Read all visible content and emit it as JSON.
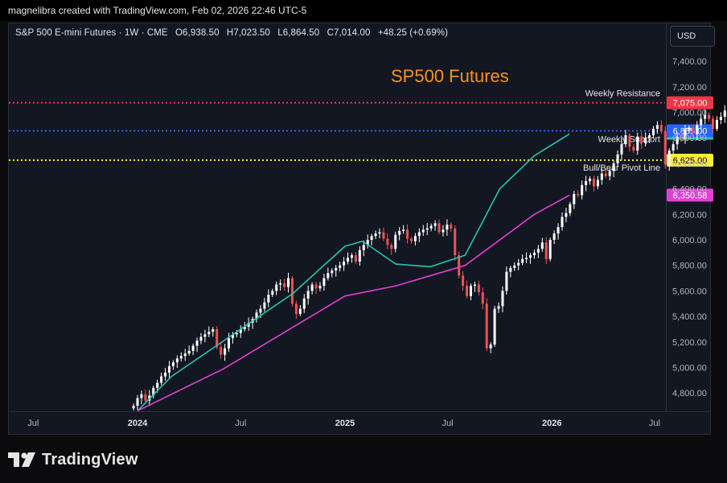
{
  "header": {
    "attribution": "magnelibra created with TradingView.com, Feb 02, 2026 22:46 UTC-5"
  },
  "symbol": {
    "name": "S&P 500 E-mini Futures · 1W · CME",
    "open": "O6,938.50",
    "high": "H7,023.50",
    "low": "L6,864.50",
    "close": "C7,014.00",
    "change": "+48.25 (+0.69%)"
  },
  "currency_button": "USD",
  "footer": {
    "brand": "TradingView"
  },
  "colors": {
    "up": "#ffffff",
    "down": "#ef5350",
    "ema_fast": "#26c6b0",
    "ema_slow": "#e040d6",
    "resistance": "#f23645",
    "support": "#2962ff",
    "pivot": "#ffeb3b",
    "title": "#f79318"
  },
  "chart_data": {
    "type": "candlestick",
    "title": "SP500 Futures",
    "xlabel": "",
    "ylabel": "",
    "y_ticks": [
      "7,400.00",
      "7,200.00",
      "7,000.00",
      "6,800.00",
      "6,600.00",
      "6,400.00",
      "6,200.00",
      "6,000.00",
      "5,800.00",
      "5,600.00",
      "5,400.00",
      "5,200.00",
      "5,000.00",
      "4,800.00"
    ],
    "x_ticks": [
      {
        "label": "Jul",
        "date": "2023-07"
      },
      {
        "label": "2024",
        "date": "2024-01"
      },
      {
        "label": "Jul",
        "date": "2024-07"
      },
      {
        "label": "2025",
        "date": "2025-01"
      },
      {
        "label": "Jul",
        "date": "2025-07"
      },
      {
        "label": "2026",
        "date": "2026-01"
      },
      {
        "label": "Jul",
        "date": "2026-07"
      }
    ],
    "ylim": [
      4660,
      7700
    ],
    "levels": [
      {
        "name": "Weekly Resistance",
        "value": 7075,
        "label": "7,075.00",
        "color": "#f23645"
      },
      {
        "name": "Weekly Support",
        "value": 6855,
        "label": "6,855.00",
        "color": "#2962ff"
      },
      {
        "name": "Bull/Bear Pivot Line",
        "value": 6625,
        "label": "6,625.00",
        "color": "#ffeb3b"
      }
    ],
    "price_tags": [
      {
        "label": "6,350.58",
        "value": 6350.58,
        "color": "#e040d6"
      },
      {
        "label": "",
        "value": 6830,
        "color": "#26c6b0"
      }
    ],
    "closes_weekly": [
      4700,
      4760,
      4790,
      4740,
      4780,
      4840,
      4880,
      4930,
      4960,
      5010,
      5040,
      5070,
      5090,
      5110,
      5130,
      5170,
      5210,
      5240,
      5260,
      5280,
      5300,
      5160,
      5100,
      5150,
      5230,
      5260,
      5270,
      5300,
      5320,
      5350,
      5380,
      5430,
      5460,
      5510,
      5570,
      5600,
      5650,
      5660,
      5630,
      5700,
      5500,
      5420,
      5460,
      5540,
      5600,
      5650,
      5620,
      5640,
      5700,
      5740,
      5760,
      5780,
      5800,
      5830,
      5860,
      5880,
      5830,
      5920,
      5960,
      6000,
      6030,
      6050,
      6060,
      6010,
      5960,
      5930,
      6040,
      6070,
      6080,
      6010,
      5990,
      6030,
      6060,
      6080,
      6090,
      6110,
      6130,
      6060,
      6080,
      6120,
      6090,
      5880,
      5720,
      5640,
      5560,
      5640,
      5650,
      5590,
      5500,
      5150,
      5180,
      5460,
      5480,
      5600,
      5750,
      5780,
      5800,
      5820,
      5850,
      5860,
      5880,
      5900,
      5930,
      5980,
      5850,
      6000,
      6050,
      6100,
      6180,
      6210,
      6280,
      6360,
      6350,
      6430,
      6460,
      6480,
      6420,
      6470,
      6520,
      6500,
      6540,
      6600,
      6670,
      6750,
      6820,
      6730,
      6700,
      6810,
      6760,
      6800,
      6820,
      6870,
      6900,
      6850,
      6590,
      6700,
      6750,
      6810,
      6790,
      6860,
      6880,
      6830,
      6900,
      6950,
      6980,
      6950,
      6870,
      6940,
      6965,
      7014
    ],
    "ema_fast": [
      {
        "date": "2024-01",
        "value": 4660
      },
      {
        "date": "2024-03",
        "value": 4930
      },
      {
        "date": "2024-07",
        "value": 5300
      },
      {
        "date": "2024-10",
        "value": 5580
      },
      {
        "date": "2025-01",
        "value": 5950
      },
      {
        "date": "2025-02",
        "value": 5990
      },
      {
        "date": "2025-04",
        "value": 5810
      },
      {
        "date": "2025-06",
        "value": 5790
      },
      {
        "date": "2025-08",
        "value": 5880
      },
      {
        "date": "2025-10",
        "value": 6400
      },
      {
        "date": "2025-12",
        "value": 6660
      },
      {
        "date": "2026-02",
        "value": 6830
      }
    ],
    "ema_slow": [
      {
        "date": "2024-01",
        "value": 4660
      },
      {
        "date": "2024-06",
        "value": 4990
      },
      {
        "date": "2025-01",
        "value": 5560
      },
      {
        "date": "2025-04",
        "value": 5640
      },
      {
        "date": "2025-08",
        "value": 5800
      },
      {
        "date": "2025-12",
        "value": 6200
      },
      {
        "date": "2026-02",
        "value": 6350
      }
    ]
  }
}
